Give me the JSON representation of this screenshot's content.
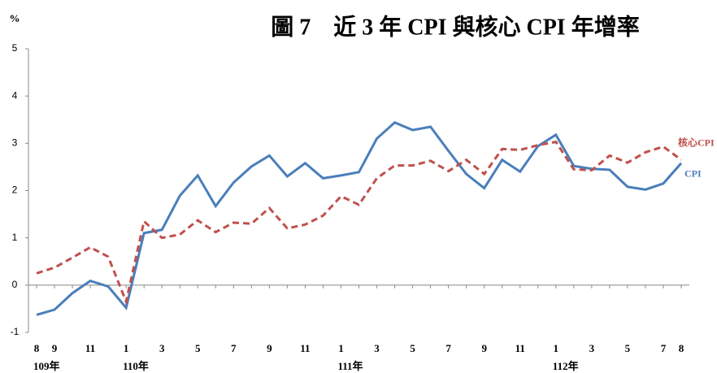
{
  "chart_data": {
    "type": "line",
    "title": "圖 7　近 3 年 CPI 與核心 CPI 年增率",
    "y_label": "%",
    "categories": [
      "8",
      "9",
      null,
      "11",
      null,
      "1",
      null,
      "3",
      null,
      "5",
      null,
      "7",
      null,
      "9",
      null,
      "11",
      null,
      "1",
      null,
      "3",
      null,
      "5",
      null,
      "7",
      null,
      "9",
      null,
      "11",
      null,
      "1",
      null,
      "3",
      null,
      "5",
      null,
      "7",
      "8"
    ],
    "category_groups": [
      "109年",
      null,
      null,
      null,
      null,
      "110年",
      null,
      null,
      null,
      null,
      null,
      null,
      null,
      null,
      null,
      null,
      null,
      "111年",
      null,
      null,
      null,
      null,
      null,
      null,
      null,
      null,
      null,
      null,
      null,
      "112年",
      null,
      null,
      null,
      null,
      null,
      null,
      null
    ],
    "series": [
      {
        "name": "CPI",
        "color": "#4a7ebb",
        "dashed": false,
        "values": [
          -0.63,
          -0.52,
          -0.17,
          0.09,
          -0.03,
          -0.48,
          1.1,
          1.17,
          1.89,
          2.32,
          1.67,
          2.17,
          2.51,
          2.74,
          2.3,
          2.58,
          2.26,
          2.32,
          2.39,
          3.1,
          3.44,
          3.28,
          3.35,
          2.84,
          2.35,
          2.05,
          2.65,
          2.4,
          2.94,
          3.18,
          2.52,
          2.46,
          2.44,
          2.08,
          2.02,
          2.15,
          2.58
        ]
      },
      {
        "name": "核心CPI",
        "color": "#c0504d",
        "dashed": true,
        "values": [
          0.25,
          0.37,
          0.58,
          0.8,
          0.6,
          -0.35,
          1.35,
          1.0,
          1.07,
          1.37,
          1.12,
          1.32,
          1.3,
          1.63,
          1.2,
          1.28,
          1.47,
          1.88,
          1.7,
          2.26,
          2.53,
          2.53,
          2.63,
          2.41,
          2.65,
          2.35,
          2.88,
          2.86,
          2.96,
          3.03,
          2.45,
          2.43,
          2.74,
          2.59,
          2.81,
          2.93,
          2.65
        ]
      }
    ],
    "ylim": [
      -1,
      5
    ],
    "yticks": [
      -1,
      0,
      1,
      2,
      3,
      4,
      5
    ]
  }
}
